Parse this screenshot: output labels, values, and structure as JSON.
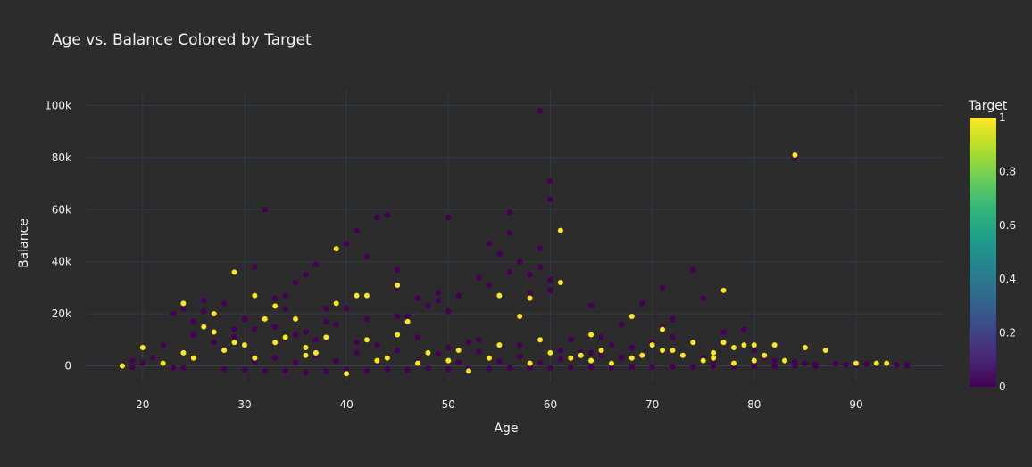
{
  "chart_data": {
    "type": "scatter",
    "title": "Age vs. Balance Colored by Target",
    "xlabel": "Age",
    "ylabel": "Balance",
    "xlim": [
      14.5,
      98.5
    ],
    "ylim": [
      -6000,
      106000
    ],
    "x_ticks": [
      20,
      30,
      40,
      50,
      60,
      70,
      80,
      90
    ],
    "x_tick_labels": [
      "20",
      "30",
      "40",
      "50",
      "60",
      "70",
      "80",
      "90"
    ],
    "y_ticks": [
      0,
      20000,
      40000,
      60000,
      80000,
      100000
    ],
    "y_tick_labels": [
      "0",
      "20k",
      "40k",
      "60k",
      "80k",
      "100k"
    ],
    "grid": true,
    "colorbar": {
      "title": "Target",
      "colorscale": "Viridis",
      "range": [
        0,
        1
      ],
      "ticks": [
        0,
        0.2,
        0.4,
        0.6,
        0.8,
        1
      ],
      "tick_labels": [
        "0",
        "0.2",
        "0.4",
        "0.6",
        "0.8",
        "1"
      ],
      "colors": [
        "#440154",
        "#482878",
        "#3e4989",
        "#31688e",
        "#26828e",
        "#1f9e89",
        "#35b779",
        "#6ece58",
        "#b5de2b",
        "#fde725"
      ]
    },
    "series": [
      {
        "target": 0,
        "color": "#440154",
        "x": [
          32,
          39,
          59,
          60,
          84,
          36,
          31,
          41,
          40,
          43,
          56,
          56,
          50,
          44,
          45,
          55,
          37,
          60,
          54,
          59,
          45,
          57,
          35,
          58,
          53,
          74,
          71,
          60,
          42,
          34,
          34,
          58,
          47,
          51,
          75,
          23,
          25,
          60,
          59,
          56,
          49,
          24,
          64,
          65,
          71,
          54,
          33,
          38,
          49,
          48,
          72,
          28,
          26,
          27,
          26,
          30,
          29,
          33,
          39,
          36,
          46,
          62,
          66,
          69,
          77,
          79,
          80,
          67,
          72,
          70,
          68,
          64,
          63,
          81,
          82,
          84,
          85,
          86,
          88,
          89,
          90,
          91,
          94,
          95,
          92,
          21,
          22,
          19,
          20,
          18,
          25,
          27,
          29,
          31,
          35,
          37,
          41,
          43,
          47,
          50,
          52,
          53,
          57,
          61,
          63,
          65,
          67,
          73,
          75,
          76,
          78,
          19,
          23,
          24,
          28,
          30,
          32,
          34,
          36,
          38,
          40,
          42,
          44,
          46,
          48,
          50,
          52,
          54,
          56,
          58,
          60,
          62,
          64,
          66,
          68,
          70,
          72,
          74,
          76,
          78,
          80,
          82,
          84,
          86,
          33,
          37,
          41,
          45,
          49,
          53,
          57,
          61,
          31,
          35,
          39,
          43,
          47,
          51,
          55,
          59,
          40,
          45,
          50,
          38,
          42
        ],
        "y": [
          60000,
          45000,
          98000,
          71000,
          80000,
          35000,
          38000,
          52000,
          47000,
          57000,
          59000,
          51000,
          57000,
          58000,
          30000,
          43000,
          39000,
          64000,
          47000,
          45000,
          37000,
          40000,
          32000,
          35000,
          34000,
          37000,
          30000,
          29000,
          42000,
          27000,
          22000,
          28000,
          26000,
          27000,
          26000,
          20000,
          17000,
          33000,
          38000,
          36000,
          25000,
          22000,
          23000,
          11000,
          15000,
          31000,
          26000,
          22000,
          28000,
          23000,
          18000,
          24000,
          25000,
          20000,
          21000,
          18000,
          14000,
          15000,
          16000,
          13000,
          19000,
          10000,
          8000,
          24000,
          13000,
          14000,
          6000,
          16000,
          11000,
          9000,
          7000,
          5000,
          4000,
          3000,
          2000,
          1500,
          1000,
          500,
          800,
          400,
          300,
          600,
          300,
          200,
          500,
          3000,
          8000,
          2000,
          1000,
          500,
          12000,
          9000,
          11000,
          14000,
          12000,
          10000,
          9000,
          8000,
          11000,
          7000,
          9000,
          10000,
          8000,
          6000,
          5000,
          4000,
          3000,
          4000,
          3000,
          2000,
          1000,
          -500,
          -700,
          -800,
          -1200,
          -1500,
          -2000,
          -1800,
          -2500,
          -2200,
          -1500,
          -1800,
          -1200,
          -1500,
          -1000,
          -1300,
          -900,
          -1100,
          -800,
          -700,
          -900,
          -600,
          -500,
          -700,
          -400,
          -500,
          -300,
          -400,
          -200,
          -300,
          -100,
          -200,
          0,
          -100,
          3000,
          4000,
          5000,
          6000,
          4500,
          5500,
          3500,
          2500,
          1500,
          1200,
          1800,
          1400,
          1600,
          1300,
          1700,
          1100,
          22000,
          19000,
          21000,
          17000,
          18000
        ]
      },
      {
        "target": 1,
        "color": "#fde725",
        "x": [
          84,
          39,
          61,
          29,
          61,
          24,
          45,
          41,
          42,
          39,
          31,
          33,
          46,
          58,
          77,
          55,
          71,
          68,
          64,
          18,
          20,
          22,
          24,
          25,
          26,
          27,
          28,
          29,
          30,
          32,
          33,
          35,
          36,
          37,
          38,
          40,
          42,
          44,
          45,
          48,
          50,
          52,
          55,
          57,
          59,
          60,
          62,
          64,
          66,
          68,
          70,
          72,
          73,
          74,
          75,
          76,
          77,
          78,
          79,
          80,
          81,
          82,
          83,
          85,
          87,
          90,
          92,
          93,
          27,
          31,
          34,
          36,
          43,
          47,
          51,
          54,
          58,
          63,
          65,
          69,
          71,
          76,
          78,
          80
        ],
        "y": [
          81000,
          45000,
          52000,
          36000,
          32000,
          24000,
          31000,
          27000,
          27000,
          24000,
          27000,
          23000,
          17000,
          26000,
          29000,
          27000,
          14000,
          19000,
          12000,
          0,
          7000,
          1000,
          5000,
          3000,
          15000,
          20000,
          6000,
          9000,
          8000,
          18000,
          9000,
          18000,
          7000,
          5000,
          11000,
          -3000,
          10000,
          3000,
          12000,
          5000,
          2000,
          -2000,
          8000,
          19000,
          10000,
          5000,
          3000,
          2000,
          1000,
          3000,
          8000,
          6000,
          4000,
          9000,
          2000,
          3000,
          9000,
          7000,
          8000,
          8000,
          4000,
          8000,
          2000,
          7000,
          6000,
          1000,
          1000,
          1000,
          13000,
          3000,
          11000,
          4000,
          2000,
          1000,
          6000,
          3000,
          1000,
          4000,
          6000,
          4000,
          6000,
          5000,
          1000,
          2000
        ]
      }
    ]
  }
}
